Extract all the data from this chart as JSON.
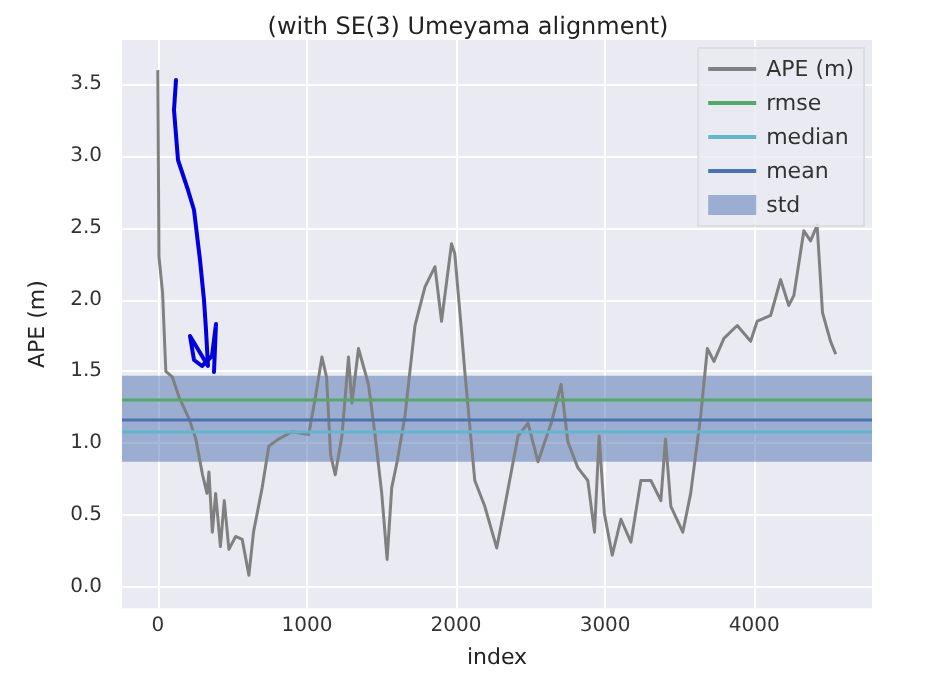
{
  "chart_data": {
    "type": "line",
    "title": "(with SE(3) Umeyama alignment)",
    "xlabel": "index",
    "ylabel": "APE (m)",
    "xlim": [
      -240,
      4790
    ],
    "xticks": [
      0,
      1000,
      2000,
      3000,
      4000
    ],
    "ylim": [
      -0.15,
      3.81
    ],
    "yticks": [
      {
        "value": 0,
        "label": "0.0"
      },
      0.5,
      {
        "value": 1,
        "label": "1.0"
      },
      1.5,
      {
        "value": 2,
        "label": "2.0"
      },
      2.5,
      {
        "value": 3,
        "label": "3.0"
      },
      3.5
    ],
    "grid": true,
    "legend": "top right",
    "marker": "none",
    "line_style": "solid",
    "series": [
      {
        "name": "APE (m)",
        "color": "#808080",
        "x": [
          0,
          8,
          32,
          54,
          98,
          143,
          210,
          255,
          300,
          330,
          343,
          366,
          388,
          420,
          446,
          477,
          522,
          566,
          611,
          642,
          700,
          745,
          812,
          901,
          1012,
          1057,
          1101,
          1132,
          1159,
          1190,
          1235,
          1279,
          1302,
          1346,
          1413,
          1458,
          1502,
          1538,
          1569,
          1605,
          1658,
          1725,
          1792,
          1859,
          1903,
          1970,
          1992,
          2037,
          2059,
          2126,
          2193,
          2273,
          2318,
          2416,
          2483,
          2550,
          2639,
          2705,
          2750,
          2817,
          2884,
          2929,
          2960,
          2995,
          3048,
          3106,
          3173,
          3240,
          3307,
          3374,
          3405,
          3441,
          3521,
          3574,
          3641,
          3686,
          3730,
          3797,
          3886,
          3976,
          4020,
          4110,
          4177,
          4232,
          4266,
          4333,
          4378,
          4422,
          4458,
          4512,
          4547
        ],
        "values": [
          3.6,
          2.3,
          2.05,
          1.5,
          1.46,
          1.32,
          1.17,
          1.03,
          0.78,
          0.65,
          0.8,
          0.38,
          0.65,
          0.28,
          0.6,
          0.26,
          0.35,
          0.33,
          0.08,
          0.38,
          0.69,
          0.98,
          1.03,
          1.08,
          1.06,
          1.32,
          1.6,
          1.46,
          0.92,
          0.78,
          1.05,
          1.6,
          1.28,
          1.66,
          1.41,
          1.05,
          0.65,
          0.19,
          0.69,
          0.87,
          1.19,
          1.82,
          2.09,
          2.23,
          1.85,
          2.39,
          2.32,
          1.78,
          1.5,
          0.74,
          0.56,
          0.27,
          0.51,
          1.05,
          1.14,
          0.87,
          1.14,
          1.41,
          1.01,
          0.83,
          0.74,
          0.38,
          1.05,
          0.51,
          0.22,
          0.47,
          0.31,
          0.74,
          0.74,
          0.6,
          1.03,
          0.56,
          0.38,
          0.65,
          1.19,
          1.66,
          1.57,
          1.73,
          1.82,
          1.71,
          1.85,
          1.89,
          2.14,
          1.96,
          2.03,
          2.48,
          2.41,
          2.52,
          1.91,
          1.71,
          1.62
        ]
      }
    ],
    "ref_lines": [
      {
        "axis": "y",
        "value": 1.31,
        "label": "rmse",
        "color": "#55a868"
      },
      {
        "axis": "y",
        "value": 1.08,
        "label": "median",
        "color": "#64b5cd"
      },
      {
        "axis": "y",
        "value": 1.16,
        "label": "mean",
        "color": "#4c72b0"
      }
    ],
    "bands": [
      {
        "axis": "y",
        "from": 0.87,
        "to": 1.47,
        "label": "std",
        "color": "#4c72b0"
      }
    ]
  }
}
